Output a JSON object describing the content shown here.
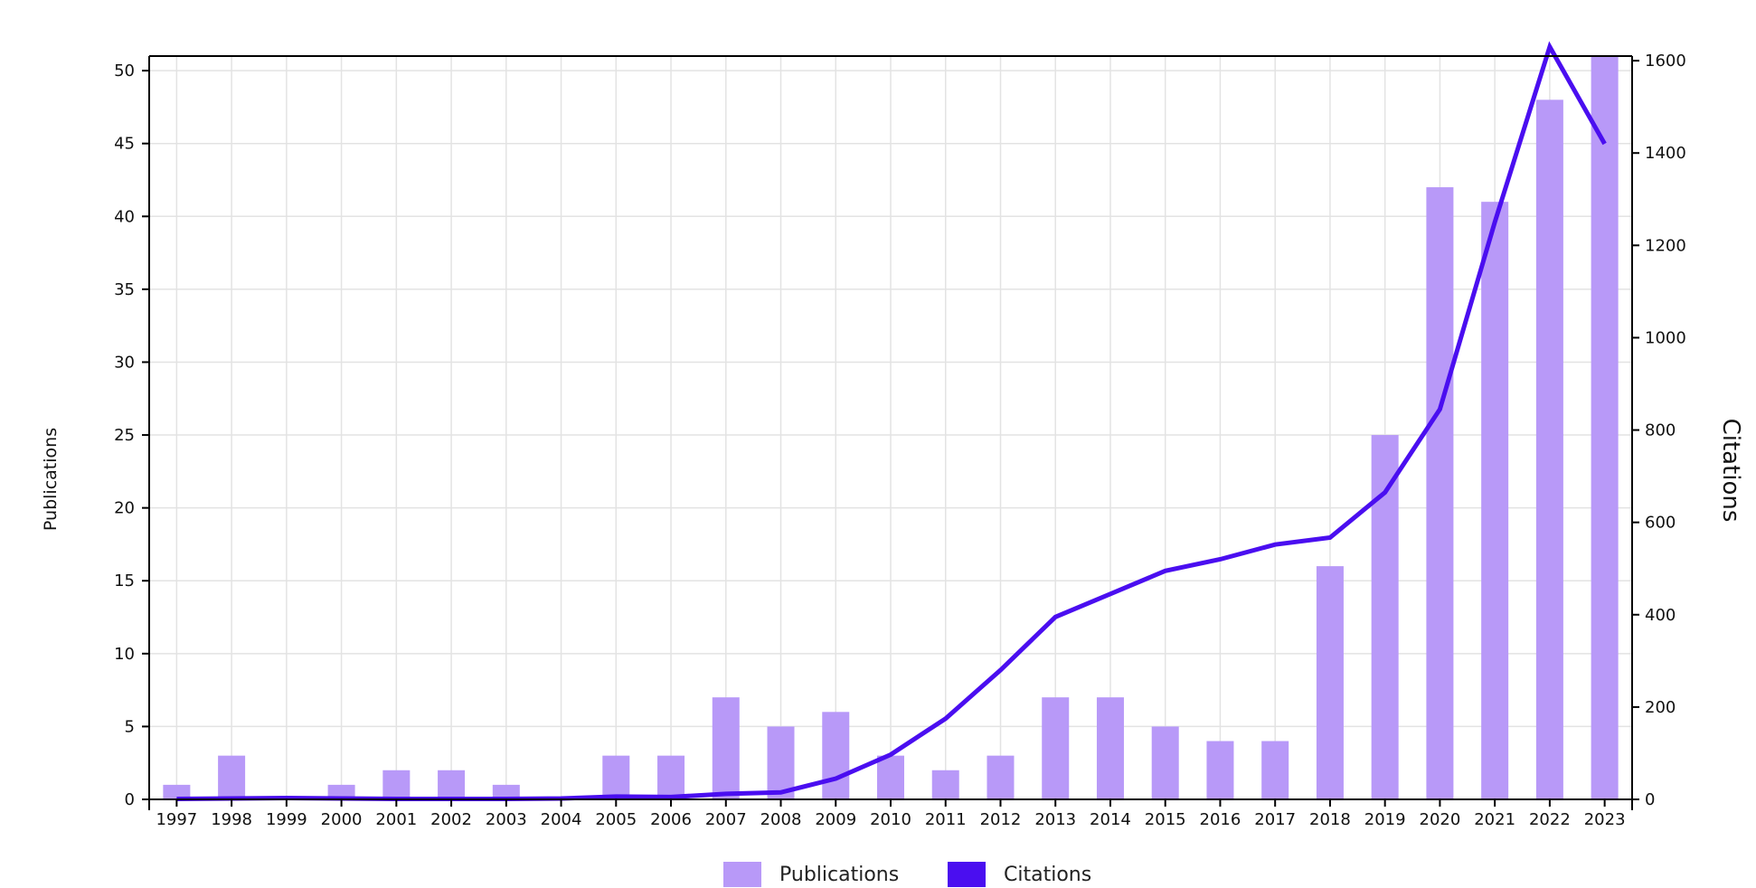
{
  "chart_data": {
    "type": "bar",
    "categories": [
      "1997",
      "1998",
      "1999",
      "2000",
      "2001",
      "2002",
      "2003",
      "2004",
      "2005",
      "2006",
      "2007",
      "2008",
      "2009",
      "2010",
      "2011",
      "2012",
      "2013",
      "2014",
      "2015",
      "2016",
      "2017",
      "2018",
      "2019",
      "2020",
      "2021",
      "2022",
      "2023"
    ],
    "series": [
      {
        "name": "Publications",
        "type": "bar",
        "axis": "left",
        "color": "#b899f8",
        "values": [
          1,
          3,
          0,
          1,
          2,
          2,
          1,
          0,
          3,
          3,
          7,
          5,
          6,
          3,
          2,
          3,
          7,
          7,
          5,
          4,
          4,
          16,
          25,
          42,
          41,
          48,
          51
        ]
      },
      {
        "name": "Citations",
        "type": "line",
        "axis": "right",
        "color": "#4a0ef0",
        "values": [
          1,
          2,
          3,
          2,
          1,
          1,
          1,
          2,
          6,
          5,
          12,
          15,
          45,
          97,
          175,
          280,
          395,
          445,
          495,
          520,
          552,
          567,
          665,
          845,
          1250,
          1630,
          1420
        ]
      }
    ],
    "ylabel": "Publications",
    "y2label": "Citations",
    "ylim": [
      0,
      51
    ],
    "y2lim": [
      0,
      1610
    ],
    "yticks": [
      0,
      5,
      10,
      15,
      20,
      25,
      30,
      35,
      40,
      45,
      50
    ],
    "y2ticks": [
      0,
      200,
      400,
      600,
      800,
      1000,
      1200,
      1400,
      1600
    ],
    "grid": true,
    "legend": "bottom-center"
  }
}
